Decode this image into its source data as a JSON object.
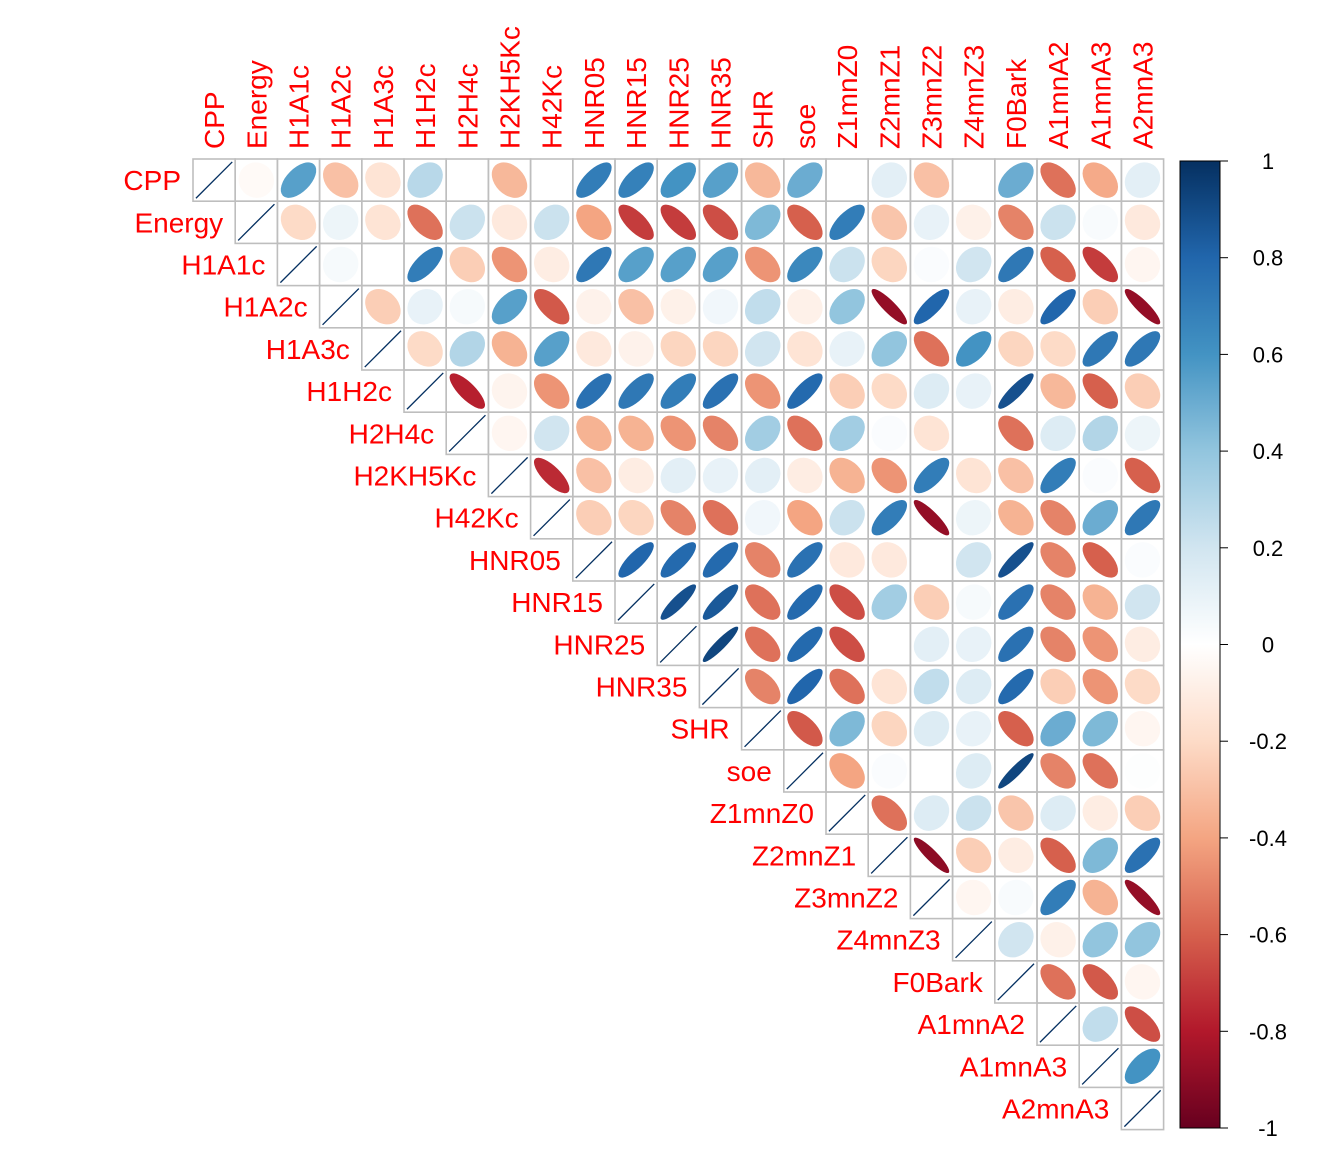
{
  "chart_data": {
    "type": "heatmap",
    "variables": [
      "CPP",
      "Energy",
      "H1A1c",
      "H1A2c",
      "H1A3c",
      "H1H2c",
      "H2H4c",
      "H2KH5Kc",
      "H42Kc",
      "HNR05",
      "HNR15",
      "HNR25",
      "HNR35",
      "SHR",
      "soe",
      "Z1mnZ0",
      "Z2mnZ1",
      "Z3mnZ2",
      "Z4mnZ3",
      "F0Bark",
      "A1mnA2",
      "A1mnA3",
      "A2mnA3"
    ],
    "upper_triangle_rows": [
      [
        1,
        -0.03,
        0.55,
        -0.3,
        -0.15,
        0.28,
        0,
        -0.33,
        0,
        0.7,
        0.68,
        0.6,
        0.55,
        -0.33,
        0.5,
        0,
        0.12,
        -0.3,
        0,
        0.5,
        -0.55,
        -0.38,
        0.12
      ],
      [
        1,
        -0.2,
        0.08,
        -0.15,
        -0.55,
        0.22,
        -0.12,
        0.22,
        -0.4,
        -0.7,
        -0.7,
        -0.65,
        0.45,
        -0.6,
        0.7,
        -0.28,
        0.1,
        -0.08,
        -0.5,
        0.22,
        0.03,
        -0.12
      ],
      [
        1,
        0.04,
        0,
        0.7,
        -0.25,
        -0.45,
        -0.1,
        0.72,
        0.55,
        0.55,
        0.55,
        -0.45,
        0.65,
        0.22,
        -0.22,
        0.02,
        0.2,
        0.72,
        -0.6,
        -0.7,
        -0.05
      ],
      [
        1,
        -0.25,
        0.1,
        0.04,
        0.55,
        -0.62,
        -0.07,
        -0.3,
        -0.08,
        0.06,
        0.25,
        -0.08,
        0.4,
        -0.88,
        0.8,
        0.1,
        -0.1,
        0.8,
        -0.25,
        -0.88
      ],
      [
        1,
        -0.2,
        0.3,
        -0.35,
        0.55,
        -0.12,
        -0.07,
        -0.22,
        -0.22,
        0.2,
        -0.15,
        0.1,
        0.4,
        -0.55,
        0.6,
        -0.22,
        -0.2,
        0.72,
        0.72
      ],
      [
        1,
        -0.78,
        -0.06,
        -0.45,
        0.75,
        0.72,
        0.7,
        0.75,
        -0.45,
        0.78,
        -0.25,
        -0.2,
        0.15,
        0.1,
        0.88,
        -0.33,
        -0.6,
        -0.25
      ],
      [
        1,
        -0.05,
        0.2,
        -0.35,
        -0.35,
        -0.45,
        -0.5,
        0.35,
        -0.55,
        0.35,
        0.02,
        -0.15,
        0,
        -0.55,
        0.15,
        0.3,
        0.08
      ],
      [
        1,
        -0.75,
        -0.3,
        -0.1,
        0.12,
        0.1,
        0.12,
        -0.1,
        -0.35,
        -0.45,
        0.7,
        -0.15,
        -0.3,
        0.7,
        0.02,
        -0.6
      ],
      [
        1,
        -0.25,
        -0.22,
        -0.5,
        -0.55,
        0.06,
        -0.4,
        0.22,
        0.7,
        -0.88,
        0.08,
        -0.35,
        -0.5,
        0.5,
        0.72
      ],
      [
        1,
        0.8,
        0.78,
        0.78,
        -0.5,
        0.75,
        -0.12,
        -0.12,
        0,
        0.2,
        0.88,
        -0.5,
        -0.6,
        0.02
      ],
      [
        1,
        0.88,
        0.85,
        -0.55,
        0.78,
        -0.65,
        0.35,
        -0.25,
        0.04,
        0.75,
        -0.5,
        -0.35,
        0.2
      ],
      [
        1,
        0.92,
        -0.55,
        0.78,
        -0.65,
        0,
        0.12,
        0.1,
        0.75,
        -0.5,
        -0.45,
        -0.1
      ],
      [
        1,
        -0.5,
        0.8,
        -0.55,
        -0.15,
        0.25,
        0.15,
        0.78,
        -0.25,
        -0.45,
        -0.2
      ],
      [
        1,
        -0.62,
        0.45,
        -0.22,
        0.15,
        0.1,
        -0.6,
        0.5,
        0.45,
        -0.05
      ],
      [
        1,
        -0.4,
        0.02,
        0,
        0.15,
        0.92,
        -0.5,
        -0.55,
        0.01
      ],
      [
        1,
        -0.55,
        0.15,
        0.22,
        -0.28,
        0.15,
        -0.1,
        -0.25
      ],
      [
        1,
        -0.9,
        -0.25,
        -0.1,
        -0.6,
        0.45,
        0.75
      ],
      [
        1,
        -0.05,
        0.03,
        0.7,
        -0.35,
        -0.88
      ],
      [
        1,
        0.2,
        -0.08,
        0.4,
        0.4
      ],
      [
        1,
        -0.55,
        -0.62,
        -0.05
      ],
      [
        1,
        0.25,
        -0.65
      ],
      [
        1,
        0.6
      ],
      [
        1
      ]
    ],
    "colorbar": {
      "range": [
        -1,
        1
      ],
      "tick_labels": [
        "-1",
        "-0.8",
        "-0.6",
        "-0.4",
        "-0.2",
        "0",
        "0.2",
        "0.4",
        "0.6",
        "0.8",
        "1"
      ],
      "colors": [
        "#67001F",
        "#B2182B",
        "#D6604D",
        "#F4A582",
        "#FDDBC7",
        "#FFFFFF",
        "#D1E5F0",
        "#92C5DE",
        "#4393C3",
        "#2166AC",
        "#053061"
      ]
    },
    "label_color": "#FF0000",
    "grid_color": "#BEBEBE",
    "method": "ellipse",
    "layout": "upper-triangle"
  }
}
